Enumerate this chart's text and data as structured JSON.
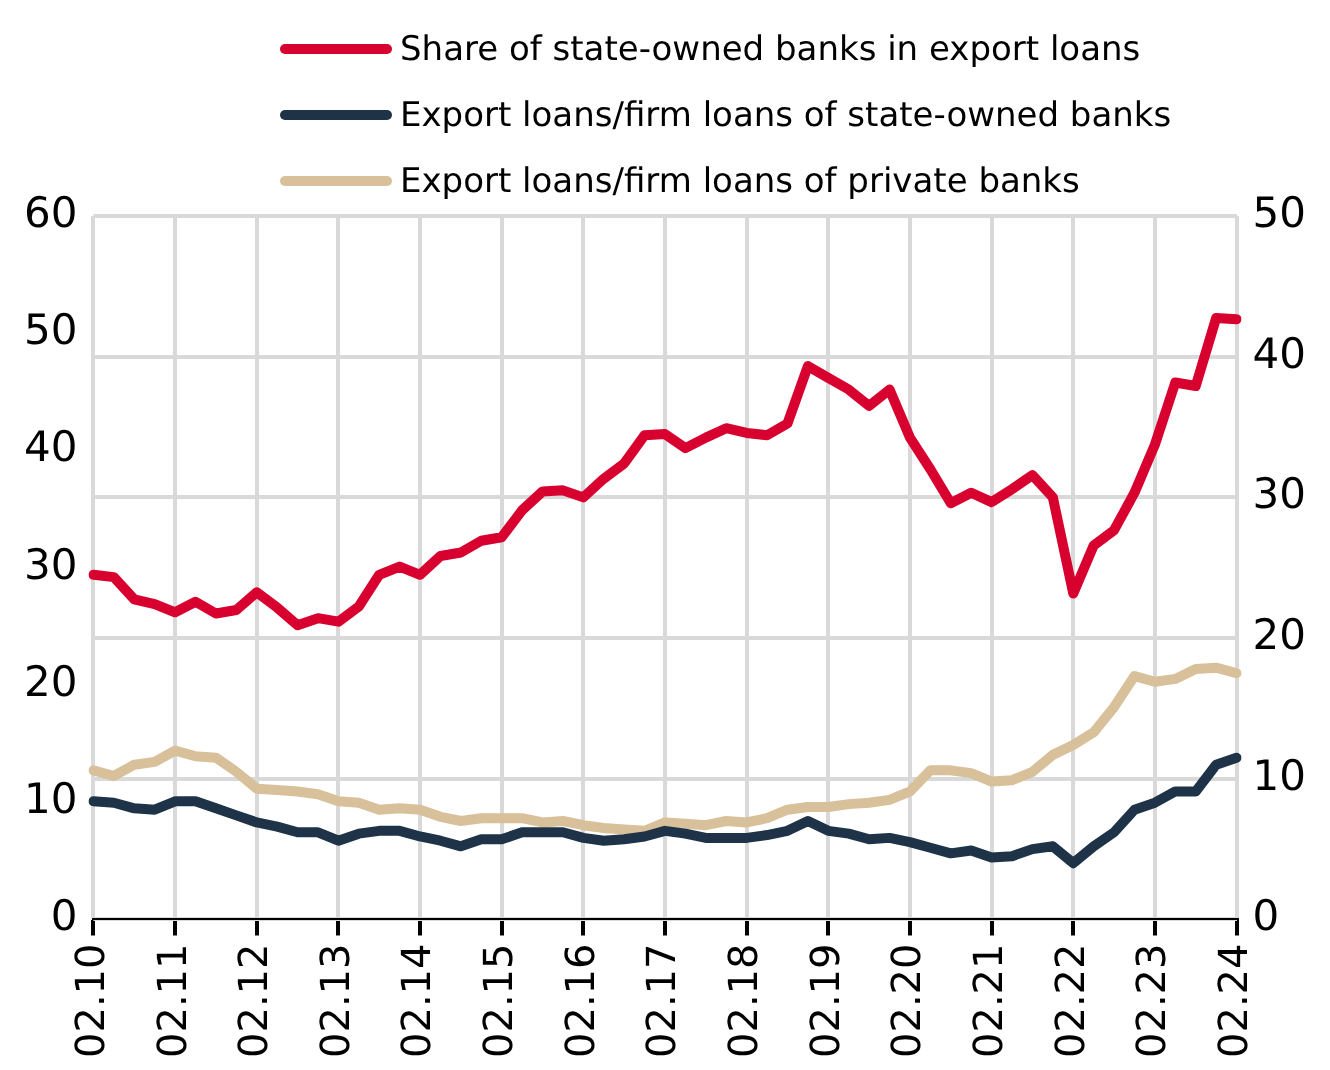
{
  "chart_data": {
    "type": "line",
    "categories": [
      "02.10",
      null,
      null,
      null,
      "02.11",
      null,
      null,
      null,
      "02.12",
      null,
      null,
      null,
      "02.13",
      null,
      null,
      null,
      "02.14",
      null,
      null,
      null,
      "02.15",
      null,
      null,
      null,
      "02.16",
      null,
      null,
      null,
      "02.17",
      null,
      null,
      null,
      "02.18",
      null,
      null,
      null,
      "02.19",
      null,
      null,
      null,
      "02.20",
      null,
      null,
      null,
      "02.21",
      null,
      null,
      null,
      "02.22",
      null,
      null,
      null,
      "02.23",
      null,
      null,
      null,
      "02.24"
    ],
    "series": [
      {
        "name": "Share of state-owned banks in export loans",
        "color": "#d7002f",
        "values": [
          29.4,
          29.2,
          27.3,
          26.9,
          26.2,
          27.1,
          26.1,
          26.4,
          27.9,
          26.6,
          25.1,
          25.7,
          25.4,
          26.7,
          29.4,
          30.1,
          29.4,
          31.0,
          31.3,
          32.3,
          32.6,
          34.9,
          36.5,
          36.6,
          36.0,
          37.6,
          38.9,
          41.3,
          41.4,
          40.2,
          41.1,
          41.9,
          41.5,
          41.3,
          42.3,
          47.2,
          46.2,
          45.2,
          43.8,
          45.2,
          41.1,
          38.4,
          35.5,
          36.4,
          35.6,
          36.7,
          37.9,
          36.0,
          27.8,
          31.9,
          33.2,
          36.4,
          40.5,
          45.8,
          45.5,
          51.3,
          51.2
        ]
      },
      {
        "name": "Export loans/firm loans of state-owned banks",
        "color": "#1e3248",
        "axis": "y2",
        "values": [
          8.4,
          8.3,
          7.9,
          7.8,
          8.4,
          8.4,
          7.9,
          7.4,
          6.9,
          6.6,
          6.2,
          6.2,
          5.6,
          6.1,
          6.3,
          6.3,
          5.9,
          5.6,
          5.2,
          5.7,
          5.7,
          6.2,
          6.2,
          6.2,
          5.8,
          5.6,
          5.7,
          5.9,
          6.3,
          6.1,
          5.8,
          5.8,
          5.8,
          6.0,
          6.3,
          7.0,
          6.3,
          6.1,
          5.7,
          5.8,
          5.5,
          5.1,
          4.7,
          4.9,
          4.4,
          4.5,
          5.0,
          5.2,
          4.0,
          5.2,
          6.2,
          7.8,
          8.3,
          9.1,
          9.1,
          11.0,
          11.5
        ]
      },
      {
        "name": "Export loans/firm loans of private banks",
        "color": "#d8c09a",
        "axis": "y2",
        "values": [
          10.6,
          10.2,
          11.0,
          11.2,
          12.0,
          11.6,
          11.5,
          10.5,
          9.3,
          9.2,
          9.1,
          8.9,
          8.4,
          8.3,
          7.8,
          7.9,
          7.8,
          7.3,
          7.0,
          7.2,
          7.2,
          7.2,
          6.9,
          7.0,
          6.7,
          6.5,
          6.4,
          6.3,
          6.9,
          6.8,
          6.7,
          7.0,
          6.9,
          7.2,
          7.8,
          8.0,
          8.0,
          8.2,
          8.3,
          8.5,
          9.1,
          10.6,
          10.6,
          10.4,
          9.8,
          9.9,
          10.5,
          11.7,
          12.4,
          13.3,
          15.1,
          17.3,
          16.9,
          17.1,
          17.8,
          17.9,
          17.5
        ]
      }
    ],
    "ylim": [
      0,
      60
    ],
    "yticks": [
      0,
      10,
      20,
      30,
      40,
      50,
      60
    ],
    "y2lim": [
      0,
      50
    ],
    "y2ticks": [
      0,
      10,
      20,
      30,
      40,
      50
    ],
    "grid": true,
    "legend": "top",
    "marker": "none",
    "line_style": "solid"
  }
}
